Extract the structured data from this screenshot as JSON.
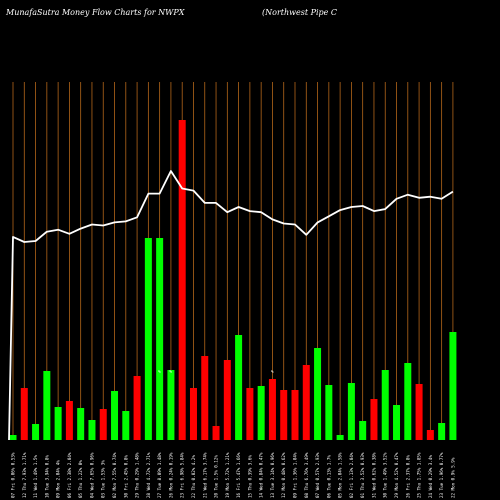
{
  "chart_data": {
    "type": "bar",
    "title": "MunafaSutra  Money Flow  Charts for NWPX",
    "subtitle": "(Northwest Pipe   C",
    "colors": {
      "background": "#000000",
      "grid": "#b3661a",
      "up": "#00ff00",
      "down": "#ff0000",
      "line": "#ffffff"
    },
    "categories": [
      "07 Fri 0.06% 0.53%",
      "12 Thu 7.93% 1.71%",
      "11 Wed 1.49% 1.5%",
      "10 Tue 3.94% 0.8%",
      "09 Mon 2.04% 4%",
      "06 Fri 2.38% 2.04%",
      "05 Thu 1.22% 0%",
      "04 Wed 7.65% 0.96%",
      "03 Tue 1.53% 3%",
      "02 Mon 7.55% 0.74%",
      "30 Fri 2.45% 0.8%",
      "29 Thu 0.29% 1.48%",
      "28 Wed 4.72% 2.71%",
      "27 Tue 8.09% 1.48%",
      "26 Mon 0.24% 0.19%",
      "23 Fri 6.98% 5.84%",
      "22 Thu 0.02% 4.2%",
      "21 Wed 6.17% 3.74%",
      "20 Tue 1.5% 0.12%",
      "19 Mon 5.72% 1.21%",
      "16 Fri 5.47% 1.66%",
      "15 Thu 0.39% 3.6%",
      "14 Wed 0.84% 0.47%",
      "13 Tue 3.14% 0.96%",
      "12 Mon 0.48% 0.62%",
      "09 Fri 1.36% 1.04%",
      "08 Thu 6.76% 3.49%",
      "07 Wed 0.57% 2.93%",
      "06 Tue 0.13% 1.7%",
      "05 Mon 2.04% 1.58%",
      "02 Fri 1.13% 2.04%",
      "01 Thu 3.52% 0.93%",
      "31 Wed 0.62% 0.38%",
      "30 Tue 1.49% 3.52%",
      "29 Mon 4.52% 0.47%",
      "26 Fri 2.37% 0.8%",
      "25 Thu 1.75% 1.85%",
      "24 Wed 0.29% 3.4%",
      "23 Tue 1.96% 0.77%",
      "22 Mon 0.9% 5.9%"
    ],
    "tick_markers": [
      "",
      "",
      "",
      "",
      "",
      "",
      "",
      "",
      "",
      "",
      "",
      "",
      "",
      "%",
      "%",
      "",
      "",
      "",
      "",
      "",
      "",
      "",
      "",
      "%",
      "",
      "",
      "",
      "",
      "",
      "",
      "",
      "",
      "",
      "",
      "",
      "",
      "",
      "",
      "",
      ""
    ],
    "series": [
      {
        "values": [
          5,
          52,
          16,
          69,
          33,
          39,
          32,
          20,
          31,
          49,
          29,
          64,
          202,
          202,
          70,
          320,
          52,
          84,
          14,
          80,
          105,
          52,
          54,
          61,
          50,
          50,
          75,
          92,
          55,
          5,
          57,
          19,
          41,
          70,
          35,
          77,
          56,
          10,
          17,
          108
        ],
        "colors": [
          "green",
          "red",
          "green",
          "green",
          "green",
          "red",
          "green",
          "green",
          "red",
          "green",
          "green",
          "red",
          "green",
          "green",
          "green",
          "red",
          "red",
          "red",
          "red",
          "red",
          "green",
          "red",
          "green",
          "red",
          "red",
          "red",
          "red",
          "green",
          "green",
          "green",
          "green",
          "green",
          "red",
          "green",
          "green",
          "green",
          "red",
          "red",
          "green",
          "green"
        ]
      },
      {
        "values": [
          200,
          195,
          196,
          205,
          207,
          203,
          208,
          212,
          211,
          214,
          215,
          219,
          242,
          242,
          264,
          247,
          245,
          233,
          233,
          224,
          229,
          225,
          224,
          217,
          213,
          212,
          202,
          214,
          220,
          226,
          229,
          230,
          225,
          227,
          237,
          241,
          238,
          239,
          237,
          244
        ]
      }
    ]
  }
}
